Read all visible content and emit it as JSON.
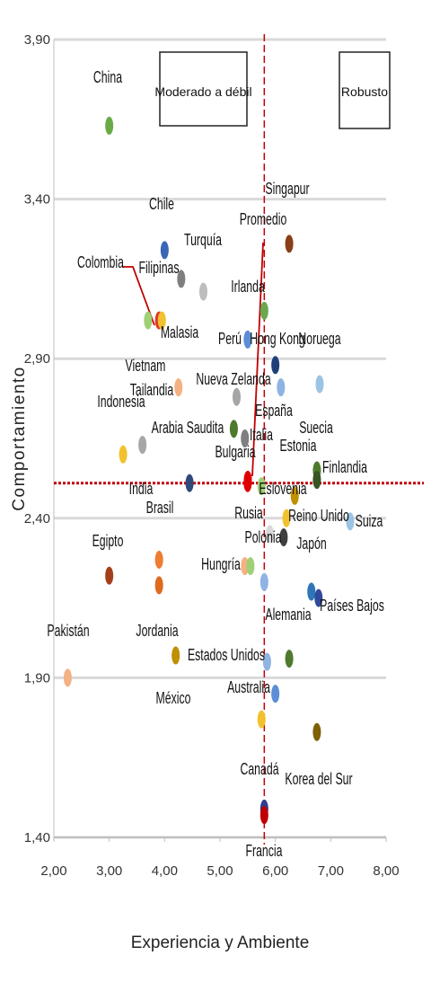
{
  "chart_data": {
    "type": "scatter",
    "xlabel": "Experiencia y Ambiente",
    "ylabel": "Comportamiento",
    "xlim": [
      2.0,
      8.0
    ],
    "ylim": [
      1.4,
      3.9
    ],
    "x_ticks": [
      "2,00",
      "3,00",
      "4,00",
      "5,00",
      "6,00",
      "7,00",
      "8,00"
    ],
    "y_ticks": [
      "1,40",
      "1,90",
      "2,40",
      "2,90",
      "3,40",
      "3,90"
    ],
    "x_tick_values": [
      2,
      3,
      4,
      5,
      6,
      7,
      8
    ],
    "y_tick_values": [
      1.4,
      1.9,
      2.4,
      2.9,
      3.4,
      3.9
    ],
    "grid": true,
    "reference_lines": {
      "vertical_x": 5.8,
      "horizontal_y": 2.51,
      "color": "#c0000a"
    },
    "quadrant_labels": [
      {
        "text": "Moderado a débil"
      },
      {
        "text": "Robusto"
      }
    ],
    "points": [
      {
        "name": "China",
        "x": 3.0,
        "y": 3.63,
        "color": "#6aaa46"
      },
      {
        "name": "Chile",
        "x": 4.0,
        "y": 3.24,
        "color": "#3a66b8"
      },
      {
        "name": "Turquía",
        "x": 4.7,
        "y": 3.11,
        "color": "#bdbdbd"
      },
      {
        "name": "Filipinas",
        "x": 4.3,
        "y": 3.15,
        "color": "#7f7f7f"
      },
      {
        "name": "Colombia",
        "x": 3.9,
        "y": 3.02,
        "color": "#e0372a"
      },
      {
        "name": "Malasia",
        "x": 3.95,
        "y": 3.02,
        "color": "#f2c12e"
      },
      {
        "name": "",
        "x": 3.7,
        "y": 3.02,
        "color": "#9fd076"
      },
      {
        "name": "Singapur",
        "x": 6.25,
        "y": 3.26,
        "color": "#8a3e16"
      },
      {
        "name": "Irlanda",
        "x": 5.8,
        "y": 3.05,
        "color": "#6aa84f"
      },
      {
        "name": "Perú",
        "x": 5.5,
        "y": 2.96,
        "color": "#5b8ed6"
      },
      {
        "name": "Hong Kong",
        "x": 6.0,
        "y": 2.88,
        "color": "#1f3d7a"
      },
      {
        "name": "Noruega",
        "x": 6.8,
        "y": 2.82,
        "color": "#9cc3e6"
      },
      {
        "name": "Vietnam",
        "x": 4.25,
        "y": 2.81,
        "color": "#f4b183"
      },
      {
        "name": "Tailandia",
        "x": 3.6,
        "y": 2.63,
        "color": "#a6a6a6"
      },
      {
        "name": "Nueva Zelanda",
        "x": 5.3,
        "y": 2.78,
        "color": "#a6a6a6"
      },
      {
        "name": "España",
        "x": 6.1,
        "y": 2.81,
        "color": "#8fb4e3"
      },
      {
        "name": "Indonesia",
        "x": 3.25,
        "y": 2.6,
        "color": "#f2c12e"
      },
      {
        "name": "Arabia Saudita",
        "x": 5.25,
        "y": 2.68,
        "color": "#4e7a2e"
      },
      {
        "name": "Italia",
        "x": 5.45,
        "y": 2.65,
        "color": "#7f7f7f"
      },
      {
        "name": "Suecia",
        "x": 6.75,
        "y": 2.55,
        "color": "#4e7a2e"
      },
      {
        "name": "Bulgaria",
        "x": 5.5,
        "y": 2.51,
        "color": "#e00000"
      },
      {
        "name": "Estonia",
        "x": 6.35,
        "y": 2.47,
        "color": "#bf9000"
      },
      {
        "name": "Finlandia",
        "x": 6.75,
        "y": 2.52,
        "color": "#375623"
      },
      {
        "name": "India",
        "x": 4.45,
        "y": 2.51,
        "color": "#2f4a7a"
      },
      {
        "name": "Eslovenia",
        "x": 5.75,
        "y": 2.5,
        "color": "#9fd076"
      },
      {
        "name": "Brasil",
        "x": 3.9,
        "y": 2.27,
        "color": "#ed7d31"
      },
      {
        "name": "Rusia",
        "x": 5.9,
        "y": 2.35,
        "color": "#d9d9d9"
      },
      {
        "name": "Reino Unido",
        "x": 6.2,
        "y": 2.4,
        "color": "#f2c12e"
      },
      {
        "name": "Polonia",
        "x": 6.15,
        "y": 2.34,
        "color": "#3f3f3f"
      },
      {
        "name": "Suiza",
        "x": 7.35,
        "y": 2.39,
        "color": "#9cc3e6"
      },
      {
        "name": "Egipto",
        "x": 3.0,
        "y": 2.22,
        "color": "#a33f1a"
      },
      {
        "name": "Hungría",
        "x": 5.45,
        "y": 2.25,
        "color": "#f4b183"
      },
      {
        "name": "",
        "x": 5.55,
        "y": 2.25,
        "color": "#9fd076"
      },
      {
        "name": "",
        "x": 3.9,
        "y": 2.19,
        "color": "#e06a20"
      },
      {
        "name": "Japón",
        "x": 6.65,
        "y": 2.17,
        "color": "#2e75b6"
      },
      {
        "name": "Países Bajos",
        "x": 6.78,
        "y": 2.15,
        "color": "#2f4a9c"
      },
      {
        "name": "",
        "x": 5.8,
        "y": 2.2,
        "color": "#8fb4e3"
      },
      {
        "name": "Alemania",
        "x": 6.25,
        "y": 1.96,
        "color": "#4e7a2e"
      },
      {
        "name": "Pakistán",
        "x": 2.25,
        "y": 1.9,
        "color": "#f4b183"
      },
      {
        "name": "Jordania",
        "x": 4.2,
        "y": 1.97,
        "color": "#bf9000"
      },
      {
        "name": "Estados Unidos",
        "x": 5.85,
        "y": 1.95,
        "color": "#8fb4e3"
      },
      {
        "name": "Australia",
        "x": 6.0,
        "y": 1.85,
        "color": "#5b8ed6"
      },
      {
        "name": "México",
        "x": 5.75,
        "y": 1.77,
        "color": "#f2c12e"
      },
      {
        "name": "Korea del Sur",
        "x": 6.75,
        "y": 1.73,
        "color": "#7f6000"
      },
      {
        "name": "Canadá",
        "x": 5.8,
        "y": 1.49,
        "color": "#2f3f8f"
      },
      {
        "name": "Francia",
        "x": 5.8,
        "y": 1.47,
        "color": "#c00000"
      },
      {
        "name": "Promedio",
        "x": 5.82,
        "y": 2.55,
        "color": "#c00000"
      }
    ]
  }
}
